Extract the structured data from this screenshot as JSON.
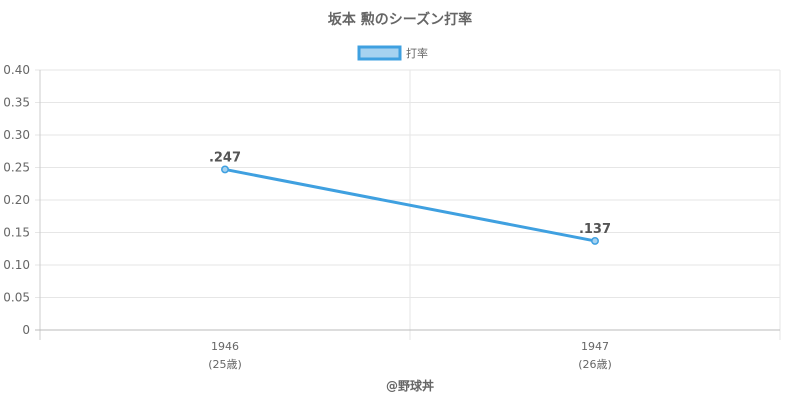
{
  "chart_data": {
    "type": "line",
    "title": "坂本 勲のシーズン打率",
    "footer": "@野球丼",
    "legend_position": "top-center",
    "grid": true,
    "categories": [
      "1946",
      "1947"
    ],
    "category_sublabels": [
      "(25歳)",
      "(26歳)"
    ],
    "ylim": [
      0,
      0.4
    ],
    "y_ticks": [
      {
        "value": 0,
        "label": "0"
      },
      {
        "value": 0.05,
        "label": "0.05"
      },
      {
        "value": 0.1,
        "label": "0.10"
      },
      {
        "value": 0.15,
        "label": "0.15"
      },
      {
        "value": 0.2,
        "label": "0.20"
      },
      {
        "value": 0.25,
        "label": "0.25"
      },
      {
        "value": 0.3,
        "label": "0.30"
      },
      {
        "value": 0.35,
        "label": "0.35"
      },
      {
        "value": 0.4,
        "label": "0.40"
      }
    ],
    "series": [
      {
        "name": "打率",
        "color": "#3fa0e0",
        "fill": "#a6d2f0",
        "values": [
          0.247,
          0.137
        ],
        "value_labels": [
          ".247",
          ".137"
        ]
      }
    ]
  }
}
